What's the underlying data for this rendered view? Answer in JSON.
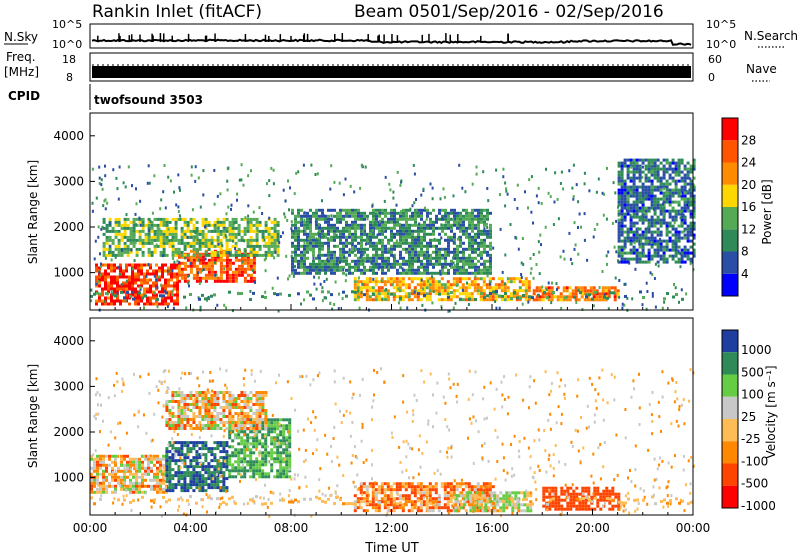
{
  "header": {
    "station": "Rankin Inlet (fitACF)",
    "beam": "Beam 05",
    "date_range": "01/Sep/2016 - 02/Sep/2016"
  },
  "aux_panels": {
    "nsky": {
      "label": "N.Sky",
      "ticks_left": [
        "10^5",
        "10^0"
      ],
      "right_label": "N.Search",
      "ticks_right": [
        "10^5",
        "10^0"
      ]
    },
    "freq": {
      "label_line1": "Freq.",
      "label_line2": "[MHz]",
      "ticks_left": [
        "18",
        "8"
      ],
      "right_label": "Nave",
      "ticks_right": [
        "60",
        "0"
      ]
    },
    "cpid": {
      "label": "CPID",
      "program": "twofsound 3503"
    }
  },
  "colors": {
    "power_scale": [
      "#0000ff",
      "#2a4ea6",
      "#2e8b57",
      "#55aa55",
      "#ffd700",
      "#ff8c00",
      "#ff5500",
      "#ff0000"
    ],
    "velocity_scale": [
      "#ff0000",
      "#ff4400",
      "#ff8800",
      "#ffbb55",
      "#c8c8c8",
      "#66cc44",
      "#2e8b57",
      "#1e3fa0"
    ]
  },
  "chart_data": [
    {
      "type": "heatmap",
      "name": "power",
      "ylabel": "Slant Range [km]",
      "yticks": [
        "1000",
        "2000",
        "3000",
        "4000"
      ],
      "ylim": [
        180,
        4500
      ],
      "xticks": [
        "00:00",
        "04:00",
        "08:00",
        "12:00",
        "16:00",
        "20:00",
        "00:00"
      ],
      "colorbar_label": "Power [dB]",
      "colorbar_ticks": [
        "4",
        "8",
        "12",
        "16",
        "20",
        "24",
        "28"
      ],
      "approx_regions": [
        {
          "t": [
            0.2,
            3.5
          ],
          "r": [
            300,
            1200
          ],
          "value": 28
        },
        {
          "t": [
            3.5,
            6.5
          ],
          "r": [
            800,
            1500
          ],
          "value": 26
        },
        {
          "t": [
            0.5,
            7.5
          ],
          "r": [
            1400,
            2200
          ],
          "value": 14
        },
        {
          "t": [
            10.5,
            17.5
          ],
          "r": [
            400,
            900
          ],
          "value": 20
        },
        {
          "t": [
            17.5,
            21.0
          ],
          "r": [
            400,
            700
          ],
          "value": 24
        },
        {
          "t": [
            8.0,
            16.0
          ],
          "r": [
            1000,
            2400
          ],
          "value": 10
        },
        {
          "t": [
            21.0,
            24.0
          ],
          "r": [
            1200,
            3500
          ],
          "value": 8
        }
      ]
    },
    {
      "type": "heatmap",
      "name": "velocity",
      "ylabel": "Slant Range [km]",
      "yticks": [
        "1000",
        "2000",
        "3000",
        "4000"
      ],
      "ylim": [
        180,
        4500
      ],
      "xticks": [
        "00:00",
        "04:00",
        "08:00",
        "12:00",
        "16:00",
        "20:00",
        "00:00"
      ],
      "xlabel": "Time UT",
      "colorbar_label": "Velocity [m s⁻¹]",
      "colorbar_ticks": [
        "1000",
        "500",
        "100",
        "25",
        "-25",
        "-100",
        "-500",
        "-1000"
      ],
      "approx_regions": [
        {
          "t": [
            0.0,
            3.0
          ],
          "r": [
            700,
            1500
          ],
          "value": 0
        },
        {
          "t": [
            3.0,
            5.5
          ],
          "r": [
            700,
            1800
          ],
          "value": 1000
        },
        {
          "t": [
            5.5,
            8.0
          ],
          "r": [
            1000,
            2300
          ],
          "value": 500
        },
        {
          "t": [
            10.5,
            16.0
          ],
          "r": [
            300,
            900
          ],
          "value": -100
        },
        {
          "t": [
            14.5,
            17.5
          ],
          "r": [
            300,
            700
          ],
          "value": 100
        },
        {
          "t": [
            18.0,
            21.0
          ],
          "r": [
            300,
            800
          ],
          "value": -300
        },
        {
          "t": [
            3.0,
            7.0
          ],
          "r": [
            2100,
            2900
          ],
          "value": 0
        }
      ]
    }
  ]
}
